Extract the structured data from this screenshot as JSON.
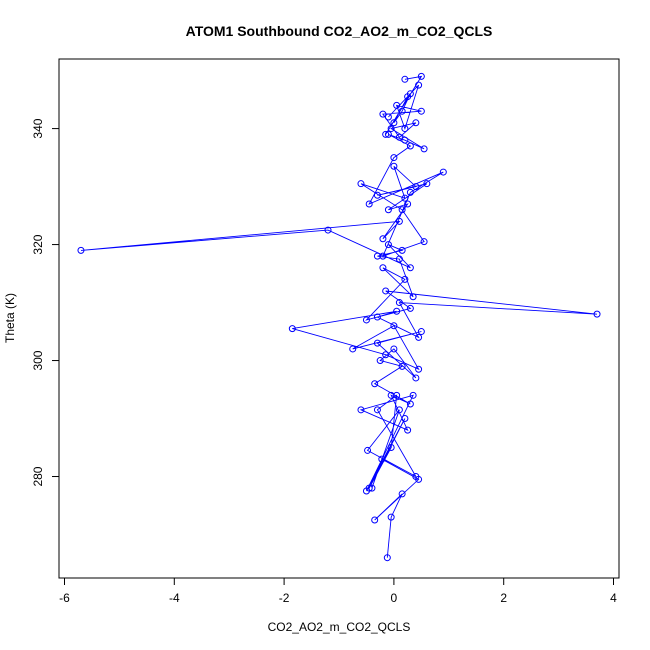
{
  "chart_data": {
    "type": "line",
    "title": "ATOM1 Southbound CO2_AO2_m_CO2_QCLS",
    "xlabel": "CO2_AO2_m_CO2_QCLS",
    "ylabel": "Theta (K)",
    "xlim": [
      -6.1,
      4.1
    ],
    "ylim": [
      262.5,
      352
    ],
    "xticks": [
      -6,
      -4,
      -2,
      0,
      2,
      4
    ],
    "yticks": [
      280,
      300,
      320,
      340
    ],
    "xtick_labels": [
      "-6",
      "-4",
      "-2",
      "0",
      "2",
      "4"
    ],
    "ytick_labels": [
      "280",
      "300",
      "320",
      "340"
    ],
    "grid": false,
    "legend": "none",
    "color": "#0000ff",
    "marker": "open-circle",
    "series": [
      {
        "x": [
          -0.12,
          -0.05,
          0.15,
          -0.35,
          0.45,
          -0.22,
          -0.4,
          0.1,
          -0.48,
          0.4,
          -0.3,
          0.05,
          -0.05,
          -0.45,
          0.2,
          -0.5,
          0.35,
          -0.6,
          0.25,
          -0.05,
          0.3,
          -0.35,
          0.15,
          -0.25,
          0.0,
          0.4,
          -0.3,
          0.5,
          -0.75,
          0.0,
          0.45,
          -0.15,
          -1.85,
          0.05,
          -0.3,
          0.45,
          0.1,
          3.7,
          -0.15,
          0.3,
          -0.5,
          0.2,
          -0.2,
          0.35,
          0.1,
          -0.3,
          0.15,
          -0.1,
          0.3,
          -1.2,
          -5.7,
          0.1,
          -0.2,
          0.25,
          -0.1,
          0.6,
          -0.3,
          0.4,
          0.0,
          0.2,
          -0.6,
          0.15,
          0.55,
          -0.2,
          0.3,
          0.9,
          -0.45,
          0.0,
          0.3,
          -0.1,
          0.2,
          0.55,
          -0.05,
          0.4,
          0.1,
          -0.2,
          0.5,
          0.05,
          0.2,
          0.45,
          -0.1,
          0.25,
          0.0,
          0.15,
          0.3,
          -0.15,
          0.5,
          0.2
        ],
        "y": [
          266,
          273,
          277,
          272.5,
          279.5,
          283,
          278,
          291.5,
          284.5,
          280,
          291.5,
          294,
          285,
          278,
          290,
          277.5,
          294,
          291.5,
          288,
          294,
          292.5,
          296,
          299,
          300,
          302,
          297,
          303,
          305,
          302,
          306,
          298.5,
          301,
          305.5,
          308.5,
          307.5,
          304,
          310,
          308,
          312,
          309,
          307,
          314,
          316,
          311,
          317.5,
          318,
          319,
          320,
          316,
          322.5,
          319,
          324,
          321,
          327,
          326,
          330.5,
          328.5,
          330,
          333.5,
          328,
          330.5,
          326,
          320.5,
          318,
          329,
          332.5,
          327,
          335,
          337,
          339,
          338,
          336.5,
          340,
          341,
          338.5,
          342.5,
          343,
          344,
          340,
          347.5,
          342,
          345.5,
          341,
          343,
          346,
          339,
          349,
          348.5
        ]
      }
    ]
  }
}
